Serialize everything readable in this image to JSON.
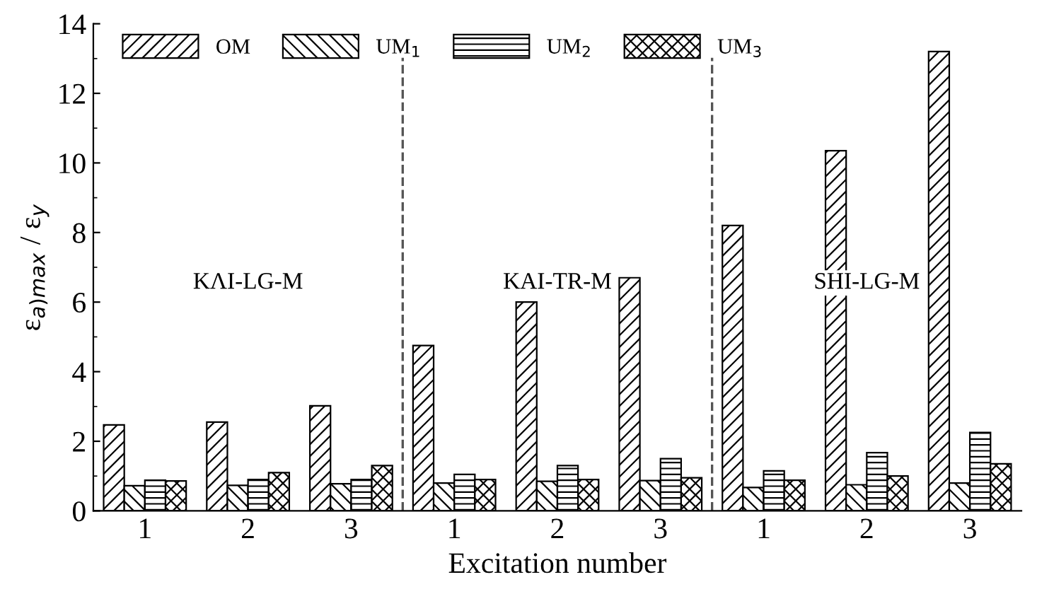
{
  "chart_data": {
    "type": "bar",
    "xlabel": "Excitation number",
    "ylabel": "ε$_{a)max}$ / ε$_{y}$",
    "categories": [
      "1",
      "2",
      "3",
      "1",
      "2",
      "3",
      "1",
      "2",
      "3"
    ],
    "series": [
      {
        "name": "OM",
        "color": "#000000",
        "values": [
          2.47,
          2.55,
          3.02,
          4.75,
          6.0,
          6.7,
          8.2,
          10.35,
          13.2
        ]
      },
      {
        "name": "UM$_{1}$",
        "color": "#000000",
        "values": [
          0.72,
          0.73,
          0.78,
          0.8,
          0.85,
          0.87,
          0.67,
          0.75,
          0.8
        ]
      },
      {
        "name": "UM$_{2}$",
        "color": "#000000",
        "values": [
          0.88,
          0.9,
          0.9,
          1.05,
          1.3,
          1.5,
          1.15,
          1.67,
          2.25
        ]
      },
      {
        "name": "UM$_{3}$",
        "color": "#000000",
        "values": [
          0.86,
          1.1,
          1.3,
          0.9,
          0.9,
          0.95,
          0.88,
          1.0,
          1.35
        ]
      }
    ],
    "annotations": [
      "KΛI-LG-M",
      "KAI-TR-M",
      "SHI-LG-M"
    ],
    "ylim": [
      0,
      14
    ],
    "yticks": [
      0,
      2,
      4,
      6,
      8,
      10,
      12,
      14
    ],
    "grid": false,
    "legend": "top"
  }
}
